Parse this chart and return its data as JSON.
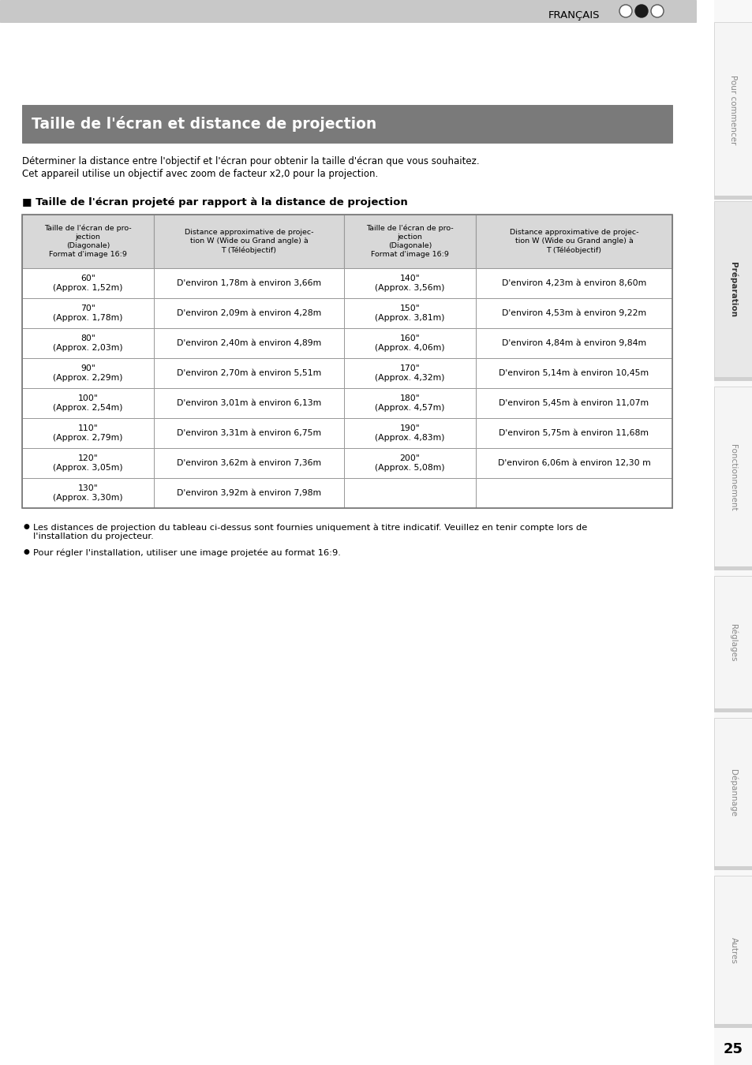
{
  "page_title": "Taille de l'écran et distance de projection",
  "header_text": "FRANÇAIS",
  "intro_lines": [
    "Déterminer la distance entre l'objectif et l'écran pour obtenir la taille d'écran que vous souhaitez.",
    "Cet appareil utilise un objectif avec zoom de facteur x2,0 pour la projection."
  ],
  "section_title": "■ Taille de l'écran projeté par rapport à la distance de projection",
  "col_headers": [
    "Taille de l'écran de pro-\njection\n(Diagonale)\nFormat d'image 16:9",
    "Distance approximative de projec-\ntion W (Wide ou Grand angle) à\nT (Téléobjectif)",
    "Taille de l'écran de pro-\njection\n(Diagonale)\nFormat d'image 16:9",
    "Distance approximative de projec-\ntion W (Wide ou Grand angle) à\nT (Téléobjectif)"
  ],
  "left_rows": [
    [
      "60\"\n(Approx. 1,52m)",
      "D'environ 1,78m à environ 3,66m"
    ],
    [
      "70\"\n(Approx. 1,78m)",
      "D'environ 2,09m à environ 4,28m"
    ],
    [
      "80\"\n(Approx. 2,03m)",
      "D'environ 2,40m à environ 4,89m"
    ],
    [
      "90\"\n(Approx. 2,29m)",
      "D'environ 2,70m à environ 5,51m"
    ],
    [
      "100\"\n(Approx. 2,54m)",
      "D'environ 3,01m à environ 6,13m"
    ],
    [
      "110\"\n(Approx. 2,79m)",
      "D'environ 3,31m à environ 6,75m"
    ],
    [
      "120\"\n(Approx. 3,05m)",
      "D'environ 3,62m à environ 7,36m"
    ],
    [
      "130\"\n(Approx. 3,30m)",
      "D'environ 3,92m à environ 7,98m"
    ]
  ],
  "right_rows": [
    [
      "140\"\n(Approx. 3,56m)",
      "D'environ 4,23m à environ 8,60m"
    ],
    [
      "150\"\n(Approx. 3,81m)",
      "D'environ 4,53m à environ 9,22m"
    ],
    [
      "160\"\n(Approx. 4,06m)",
      "D'environ 4,84m à environ 9,84m"
    ],
    [
      "170\"\n(Approx. 4,32m)",
      "D'environ 5,14m à environ 10,45m"
    ],
    [
      "180\"\n(Approx. 4,57m)",
      "D'environ 5,45m à environ 11,07m"
    ],
    [
      "190\"\n(Approx. 4,83m)",
      "D'environ 5,75m à environ 11,68m"
    ],
    [
      "200\"\n(Approx. 5,08m)",
      "D'environ 6,06m à environ 12,30 m"
    ]
  ],
  "footnotes": [
    "Les distances de projection du tableau ci-dessus sont fournies uniquement à titre indicatif. Veuillez en tenir compte lors de\nl'installation du projecteur.",
    "Pour régler l'installation, utiliser une image projetée au format 16:9."
  ],
  "sidebar_labels": [
    "Pour commencer",
    "Préparation",
    "Fonctionnement",
    "Réglages",
    "Dépannage",
    "Autres"
  ],
  "page_number": "25",
  "header_bg": "#c8c8c8",
  "title_bg": "#7a7a7a",
  "title_text_color": "#ffffff",
  "table_header_bg": "#d8d8d8",
  "table_border_color": "#999999",
  "sidebar_bg": "#f5f5f5"
}
